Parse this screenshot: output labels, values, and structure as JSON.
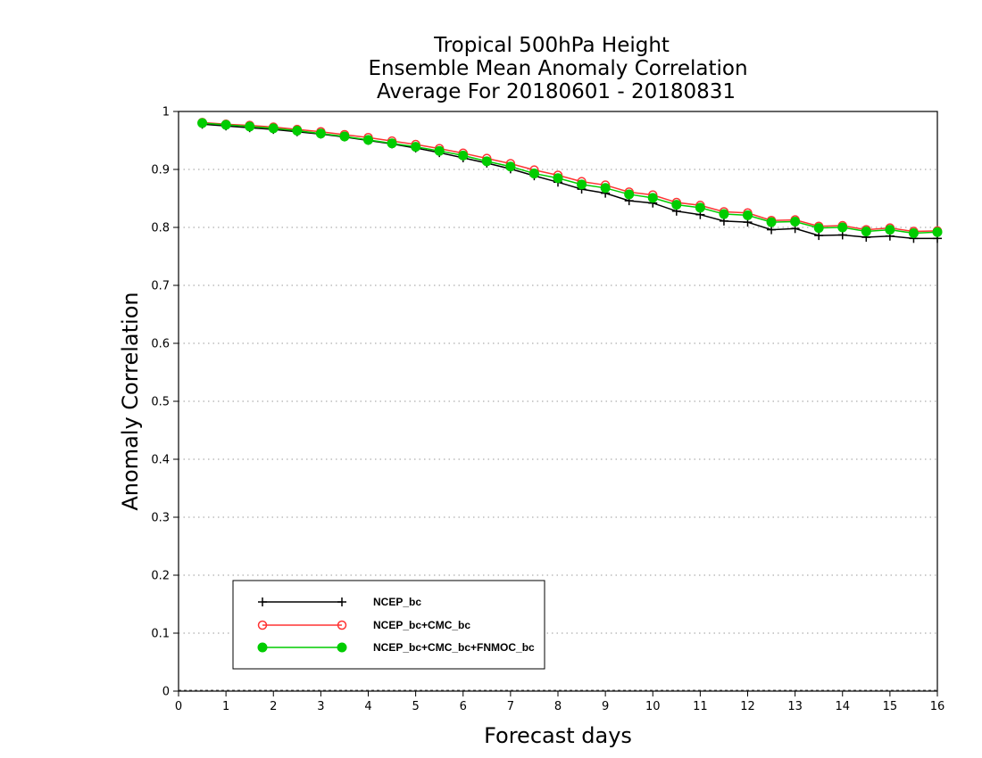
{
  "chart_data": {
    "type": "line",
    "title": [
      "Tropical 500hPa Height",
      "Ensemble Mean Anomaly Correlation",
      "Average For 20180601 - 20180831"
    ],
    "xlabel": "Forecast days",
    "ylabel": "Anomaly Correlation",
    "xlim": [
      0,
      16
    ],
    "ylim": [
      0,
      1
    ],
    "xticks": [
      "0",
      "1",
      "2",
      "3",
      "4",
      "5",
      "6",
      "7",
      "8",
      "9",
      "10",
      "11",
      "12",
      "13",
      "14",
      "15",
      "16"
    ],
    "yticks": [
      "0",
      "0.1",
      "0.2",
      "0.3",
      "0.4",
      "0.5",
      "0.6",
      "0.7",
      "0.8",
      "0.9",
      "1"
    ],
    "grid": "horizontal dotted",
    "legend_position": "bottom-left",
    "x": [
      0.5,
      1,
      1.5,
      2,
      2.5,
      3,
      3.5,
      4,
      4.5,
      5,
      5.5,
      6,
      6.5,
      7,
      7.5,
      8,
      8.5,
      9,
      9.5,
      10,
      10.5,
      11,
      11.5,
      12,
      12.5,
      13,
      13.5,
      14,
      14.5,
      15,
      15.5,
      16
    ],
    "series": [
      {
        "name": "NCEP_bc",
        "color": "#000000",
        "marker": "plus",
        "values": [
          0.978,
          0.975,
          0.972,
          0.969,
          0.965,
          0.961,
          0.956,
          0.95,
          0.944,
          0.937,
          0.929,
          0.92,
          0.911,
          0.901,
          0.889,
          0.878,
          0.866,
          0.859,
          0.846,
          0.842,
          0.828,
          0.822,
          0.811,
          0.809,
          0.796,
          0.798,
          0.786,
          0.787,
          0.783,
          0.785,
          0.781,
          0.781
        ]
      },
      {
        "name": "NCEP_bc+CMC_bc",
        "color": "#ff3333",
        "marker": "open-circle",
        "values": [
          0.981,
          0.978,
          0.976,
          0.973,
          0.969,
          0.965,
          0.96,
          0.955,
          0.949,
          0.943,
          0.936,
          0.928,
          0.919,
          0.91,
          0.899,
          0.89,
          0.879,
          0.873,
          0.861,
          0.856,
          0.843,
          0.838,
          0.827,
          0.825,
          0.812,
          0.813,
          0.802,
          0.803,
          0.796,
          0.799,
          0.793,
          0.794
        ]
      },
      {
        "name": "NCEP_bc+CMC_bc+FNMOC_bc",
        "color": "#00cc00",
        "marker": "filled-circle",
        "values": [
          0.98,
          0.977,
          0.974,
          0.971,
          0.967,
          0.962,
          0.957,
          0.951,
          0.945,
          0.939,
          0.932,
          0.924,
          0.914,
          0.905,
          0.893,
          0.885,
          0.874,
          0.868,
          0.857,
          0.851,
          0.839,
          0.834,
          0.823,
          0.821,
          0.809,
          0.81,
          0.799,
          0.8,
          0.793,
          0.796,
          0.79,
          0.792
        ]
      }
    ]
  }
}
